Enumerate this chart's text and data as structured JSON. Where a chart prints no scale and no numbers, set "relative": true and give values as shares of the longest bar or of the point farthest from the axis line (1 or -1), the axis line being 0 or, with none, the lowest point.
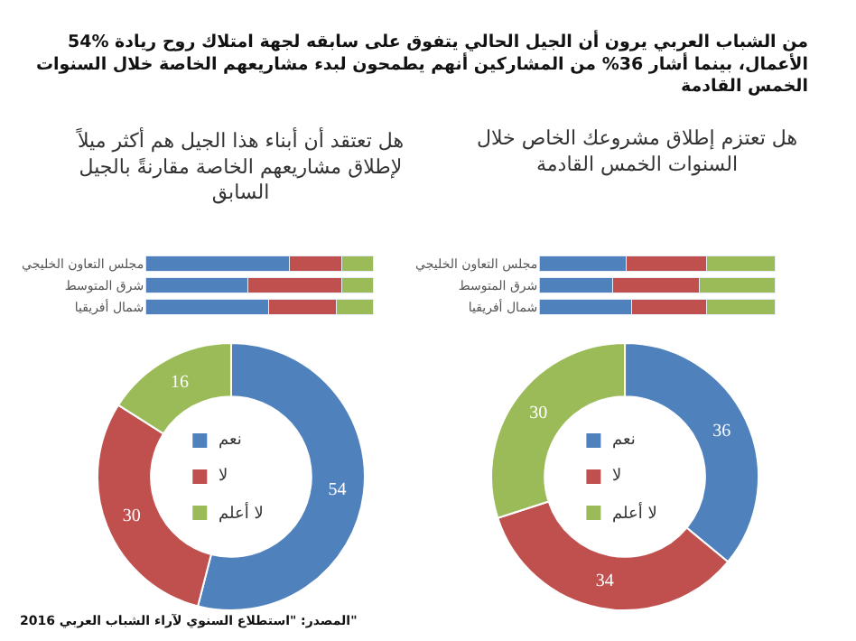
{
  "chart_data": [
    {
      "type": "bar",
      "orientation": "horizontal",
      "stacked": true,
      "relative": true,
      "title": "هل تعتقد أن أبناء هذا الجيل هم أكثر ميلاً\nلإطلاق مشاريعهم الخاصة مقارنةً بالجيل\nالسابق",
      "annotations": [
        "54% من الشباب العربي يرون أن الجيل الحالي يتفوق على سابقه لجهة امتلاك روح ريادة\nالأعمال، بينما أشار 36% من المشاركين أنهم يطمحون لبدء مشاريعهم الخاصة خلال السنوات\nالخمس القادمة"
      ],
      "categories": [
        "مجلس التعاون الخليجي",
        "شرق المتوسط",
        "شمال أفريقيا"
      ],
      "series": [
        {
          "color": "#4f81bd",
          "values": [
            0.63,
            0.45,
            0.54
          ]
        },
        {
          "color": "#c0504d",
          "values": [
            0.23,
            0.41,
            0.3
          ]
        },
        {
          "color": "#9bbb59",
          "values": [
            0.14,
            0.14,
            0.16
          ]
        }
      ]
    },
    {
      "type": "donut",
      "categories": [
        "نعم",
        "لا",
        "لا أعلم"
      ],
      "values": [
        54,
        30,
        16
      ],
      "colors": [
        "#4f81bd",
        "#c0504d",
        "#9bbb59"
      ],
      "data_labels": true,
      "legend": "center",
      "annotations": [
        "المصدر: \"استطلاع السنوي لآراء الشباب العربي 2016\""
      ]
    },
    {
      "type": "bar",
      "orientation": "horizontal",
      "stacked": true,
      "relative": true,
      "title": "هل تعتزم إطلاق مشروعك الخاص خلال\nالسنوات الخمس القادمة",
      "categories": [
        "مجلس التعاون الخليجي",
        "شرق المتوسط",
        "شمال أفريقيا"
      ],
      "series": [
        {
          "color": "#4f81bd",
          "values": [
            0.37,
            0.31,
            0.39
          ]
        },
        {
          "color": "#c0504d",
          "values": [
            0.34,
            0.37,
            0.32
          ]
        },
        {
          "color": "#9bbb59",
          "values": [
            0.29,
            0.32,
            0.29
          ]
        }
      ]
    },
    {
      "type": "donut",
      "categories": [
        "نعم",
        "لا",
        "لا أعلم"
      ],
      "values": [
        36,
        34,
        30
      ],
      "colors": [
        "#4f81bd",
        "#c0504d",
        "#9bbb59"
      ],
      "data_labels": true,
      "legend": "center"
    }
  ]
}
